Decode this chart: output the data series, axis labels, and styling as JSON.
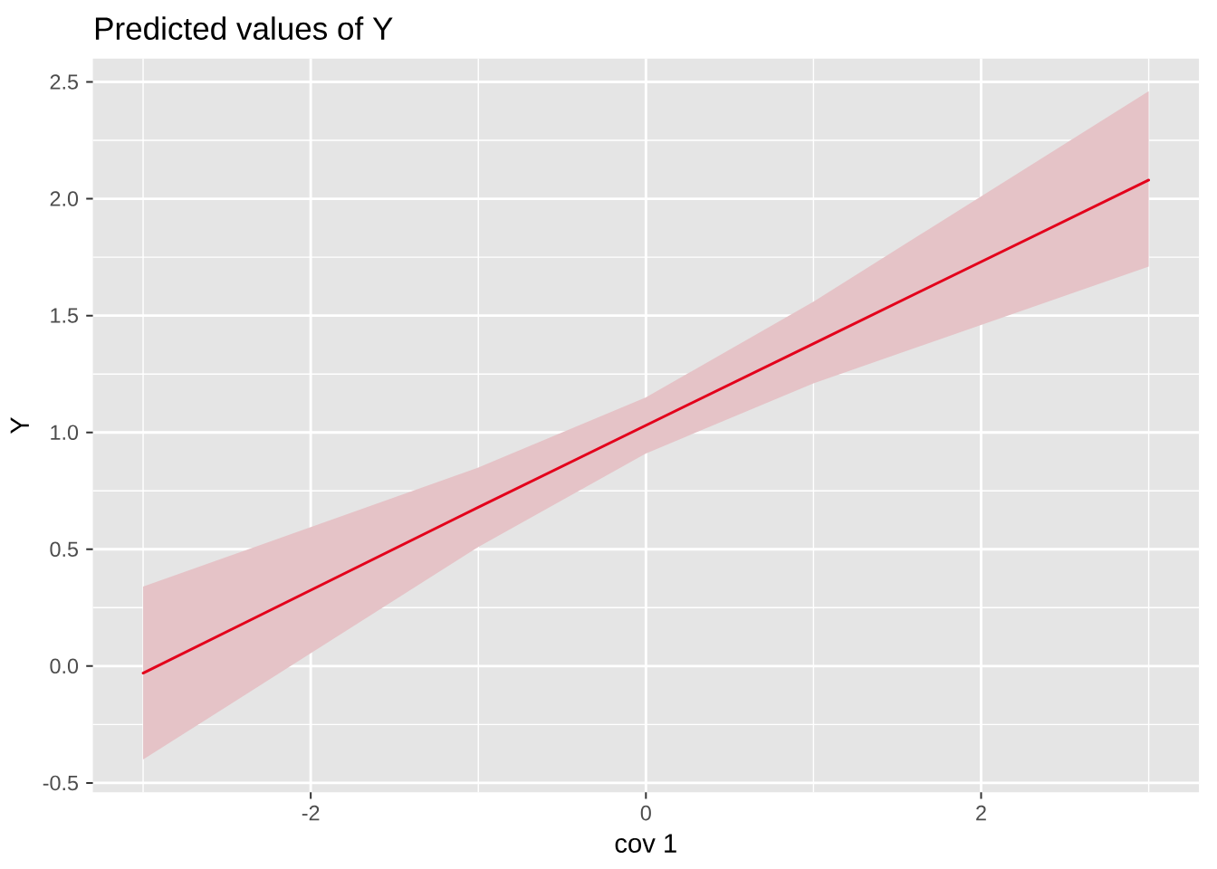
{
  "chart_data": {
    "type": "line",
    "title": "Predicted values of Y",
    "xlabel": "cov 1",
    "ylabel": "Y",
    "xlim": [
      -3.3,
      3.3
    ],
    "ylim": [
      -0.54,
      2.6
    ],
    "xticks": [
      -2,
      0,
      2
    ],
    "yticks": [
      -0.5,
      {
        "value": 0,
        "label": "0.0"
      },
      0.5,
      {
        "value": 1,
        "label": "1.0"
      },
      1.5,
      {
        "value": 2,
        "label": "2.0"
      },
      2.5
    ],
    "grid": true,
    "series": [
      {
        "color": "#e3001b",
        "x": [
          -3,
          -1,
          0,
          1,
          3
        ],
        "values": [
          -0.03,
          0.68,
          1.03,
          1.38,
          2.08
        ],
        "lower": [
          -0.4,
          0.51,
          0.91,
          1.21,
          1.71
        ],
        "upper": [
          0.34,
          0.85,
          1.15,
          1.56,
          2.46
        ]
      }
    ]
  }
}
